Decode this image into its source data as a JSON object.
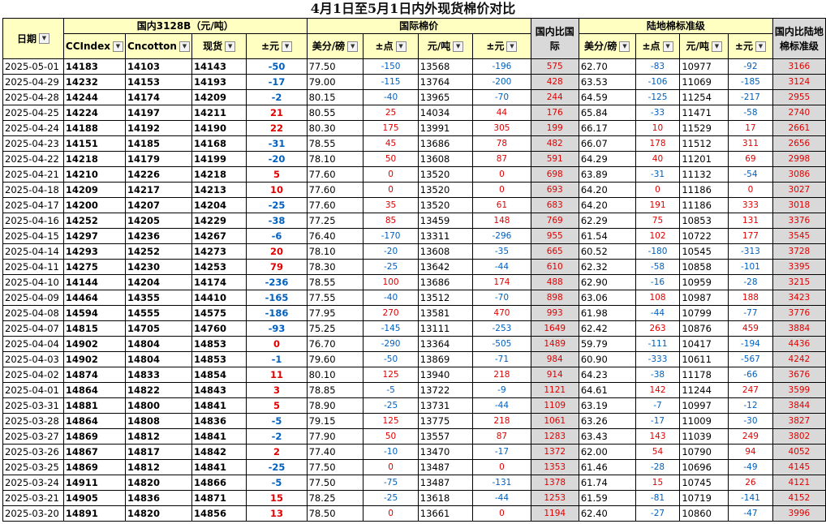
{
  "title": "4月1日至5月1日内外现货棉价对比",
  "header": {
    "group_domestic": "国内3128B（元/吨）",
    "group_intl": "国际棉价",
    "group_intl_vs": "国内比国际",
    "group_land": "陆地棉标准级",
    "group_land_vs": "国内比陆地棉标准级",
    "cols": [
      "日期",
      "CCIndex",
      "Cncotton",
      "现货",
      "±元",
      "美分/磅",
      "±点",
      "元/吨",
      "±元",
      "美分/磅",
      "±点",
      "元/吨",
      "±元"
    ]
  },
  "rows": [
    [
      "2025-05-01",
      "14183",
      "14103",
      "14143",
      "-50",
      "77.50",
      "-150",
      "13568",
      "-196",
      "575",
      "62.70",
      "-83",
      "10977",
      "-92",
      "3166"
    ],
    [
      "2025-04-29",
      "14232",
      "14153",
      "14193",
      "-17",
      "79.00",
      "-115",
      "13764",
      "-200",
      "428",
      "63.53",
      "-106",
      "11069",
      "-185",
      "3124"
    ],
    [
      "2025-04-28",
      "14244",
      "14174",
      "14209",
      "-2",
      "80.15",
      "-40",
      "13965",
      "-70",
      "244",
      "64.59",
      "-125",
      "11254",
      "-217",
      "2955"
    ],
    [
      "2025-04-25",
      "14224",
      "14197",
      "14211",
      "21",
      "80.55",
      "25",
      "14034",
      "44",
      "176",
      "65.84",
      "-33",
      "11471",
      "-58",
      "2740"
    ],
    [
      "2025-04-24",
      "14188",
      "14192",
      "14190",
      "22",
      "80.30",
      "175",
      "13991",
      "305",
      "199",
      "66.17",
      "10",
      "11529",
      "17",
      "2661"
    ],
    [
      "2025-04-23",
      "14151",
      "14185",
      "14168",
      "-31",
      "78.55",
      "45",
      "13686",
      "78",
      "482",
      "66.07",
      "178",
      "11512",
      "311",
      "2656"
    ],
    [
      "2025-04-22",
      "14218",
      "14179",
      "14199",
      "-20",
      "78.10",
      "50",
      "13608",
      "87",
      "591",
      "64.29",
      "40",
      "11201",
      "69",
      "2998"
    ],
    [
      "2025-04-21",
      "14210",
      "14226",
      "14218",
      "5",
      "77.60",
      "0",
      "13520",
      "0",
      "698",
      "63.89",
      "-31",
      "11132",
      "-54",
      "3086"
    ],
    [
      "2025-04-18",
      "14209",
      "14217",
      "14213",
      "10",
      "77.60",
      "0",
      "13520",
      "0",
      "693",
      "64.20",
      "0",
      "11186",
      "0",
      "3027"
    ],
    [
      "2025-04-17",
      "14200",
      "14207",
      "14204",
      "-25",
      "77.60",
      "35",
      "13520",
      "61",
      "683",
      "64.20",
      "191",
      "11186",
      "333",
      "3018"
    ],
    [
      "2025-04-16",
      "14252",
      "14205",
      "14229",
      "-38",
      "77.25",
      "85",
      "13459",
      "148",
      "769",
      "62.29",
      "75",
      "10853",
      "131",
      "3376"
    ],
    [
      "2025-04-15",
      "14297",
      "14236",
      "14267",
      "-6",
      "76.40",
      "-170",
      "13311",
      "-296",
      "955",
      "61.54",
      "102",
      "10722",
      "177",
      "3545"
    ],
    [
      "2025-04-14",
      "14293",
      "14252",
      "14273",
      "20",
      "78.10",
      "-20",
      "13608",
      "-35",
      "665",
      "60.52",
      "-180",
      "10545",
      "-313",
      "3728"
    ],
    [
      "2025-04-11",
      "14275",
      "14230",
      "14253",
      "79",
      "78.30",
      "-25",
      "13642",
      "-44",
      "610",
      "62.32",
      "-58",
      "10858",
      "-101",
      "3395"
    ],
    [
      "2025-04-10",
      "14144",
      "14204",
      "14174",
      "-236",
      "78.55",
      "100",
      "13686",
      "174",
      "488",
      "62.90",
      "-16",
      "10959",
      "-28",
      "3215"
    ],
    [
      "2025-04-09",
      "14464",
      "14355",
      "14410",
      "-165",
      "77.55",
      "-40",
      "13512",
      "-70",
      "898",
      "63.06",
      "108",
      "10987",
      "188",
      "3423"
    ],
    [
      "2025-04-08",
      "14594",
      "14555",
      "14575",
      "-186",
      "77.95",
      "270",
      "13581",
      "470",
      "993",
      "61.98",
      "-44",
      "10799",
      "-77",
      "3776"
    ],
    [
      "2025-04-07",
      "14815",
      "14705",
      "14760",
      "-93",
      "75.25",
      "-145",
      "13111",
      "-253",
      "1649",
      "62.42",
      "263",
      "10876",
      "459",
      "3884"
    ],
    [
      "2025-04-04",
      "14902",
      "14804",
      "14853",
      "0",
      "76.70",
      "-290",
      "13364",
      "-505",
      "1489",
      "59.79",
      "-111",
      "10417",
      "-194",
      "4436"
    ],
    [
      "2025-04-03",
      "14902",
      "14804",
      "14853",
      "-1",
      "79.60",
      "-50",
      "13869",
      "-71",
      "984",
      "60.90",
      "-333",
      "10611",
      "-567",
      "4242"
    ],
    [
      "2025-04-02",
      "14874",
      "14833",
      "14854",
      "11",
      "80.10",
      "125",
      "13940",
      "218",
      "914",
      "64.23",
      "-38",
      "11178",
      "-66",
      "3676"
    ],
    [
      "2025-04-01",
      "14864",
      "14822",
      "14843",
      "3",
      "78.85",
      "-5",
      "13722",
      "-9",
      "1121",
      "64.61",
      "142",
      "11244",
      "247",
      "3599"
    ],
    [
      "2025-03-31",
      "14881",
      "14800",
      "14841",
      "5",
      "78.90",
      "-25",
      "13731",
      "-44",
      "1109",
      "63.19",
      "-7",
      "10997",
      "-12",
      "3844"
    ],
    [
      "2025-03-28",
      "14864",
      "14808",
      "14836",
      "-5",
      "79.15",
      "125",
      "13775",
      "218",
      "1061",
      "63.26",
      "-17",
      "11009",
      "-30",
      "3827"
    ],
    [
      "2025-03-27",
      "14869",
      "14812",
      "14841",
      "-2",
      "77.90",
      "50",
      "13557",
      "87",
      "1283",
      "63.43",
      "143",
      "11039",
      "249",
      "3802"
    ],
    [
      "2025-03-26",
      "14867",
      "14817",
      "14842",
      "2",
      "77.40",
      "-10",
      "13470",
      "-17",
      "1372",
      "62.00",
      "54",
      "10790",
      "94",
      "4052"
    ],
    [
      "2025-03-25",
      "14869",
      "14812",
      "14841",
      "-25",
      "77.50",
      "0",
      "13487",
      "0",
      "1353",
      "61.46",
      "-28",
      "10696",
      "-49",
      "4145"
    ],
    [
      "2025-03-24",
      "14911",
      "14820",
      "14866",
      "-5",
      "77.50",
      "-75",
      "13487",
      "-131",
      "1378",
      "61.74",
      "15",
      "10745",
      "26",
      "4121"
    ],
    [
      "2025-03-21",
      "14905",
      "14836",
      "14871",
      "15",
      "78.25",
      "-25",
      "13618",
      "-44",
      "1253",
      "61.59",
      "-81",
      "10719",
      "-141",
      "4152"
    ],
    [
      "2025-03-20",
      "14891",
      "14820",
      "14856",
      "13",
      "78.50",
      "0",
      "13661",
      "0",
      "1194",
      "62.40",
      "-27",
      "10860",
      "-47",
      "3996"
    ]
  ],
  "colors": {
    "header_bg": "#ffffc2",
    "compare_bg": "#d9d9d9",
    "up": "#e00000",
    "down": "#0060c0"
  }
}
